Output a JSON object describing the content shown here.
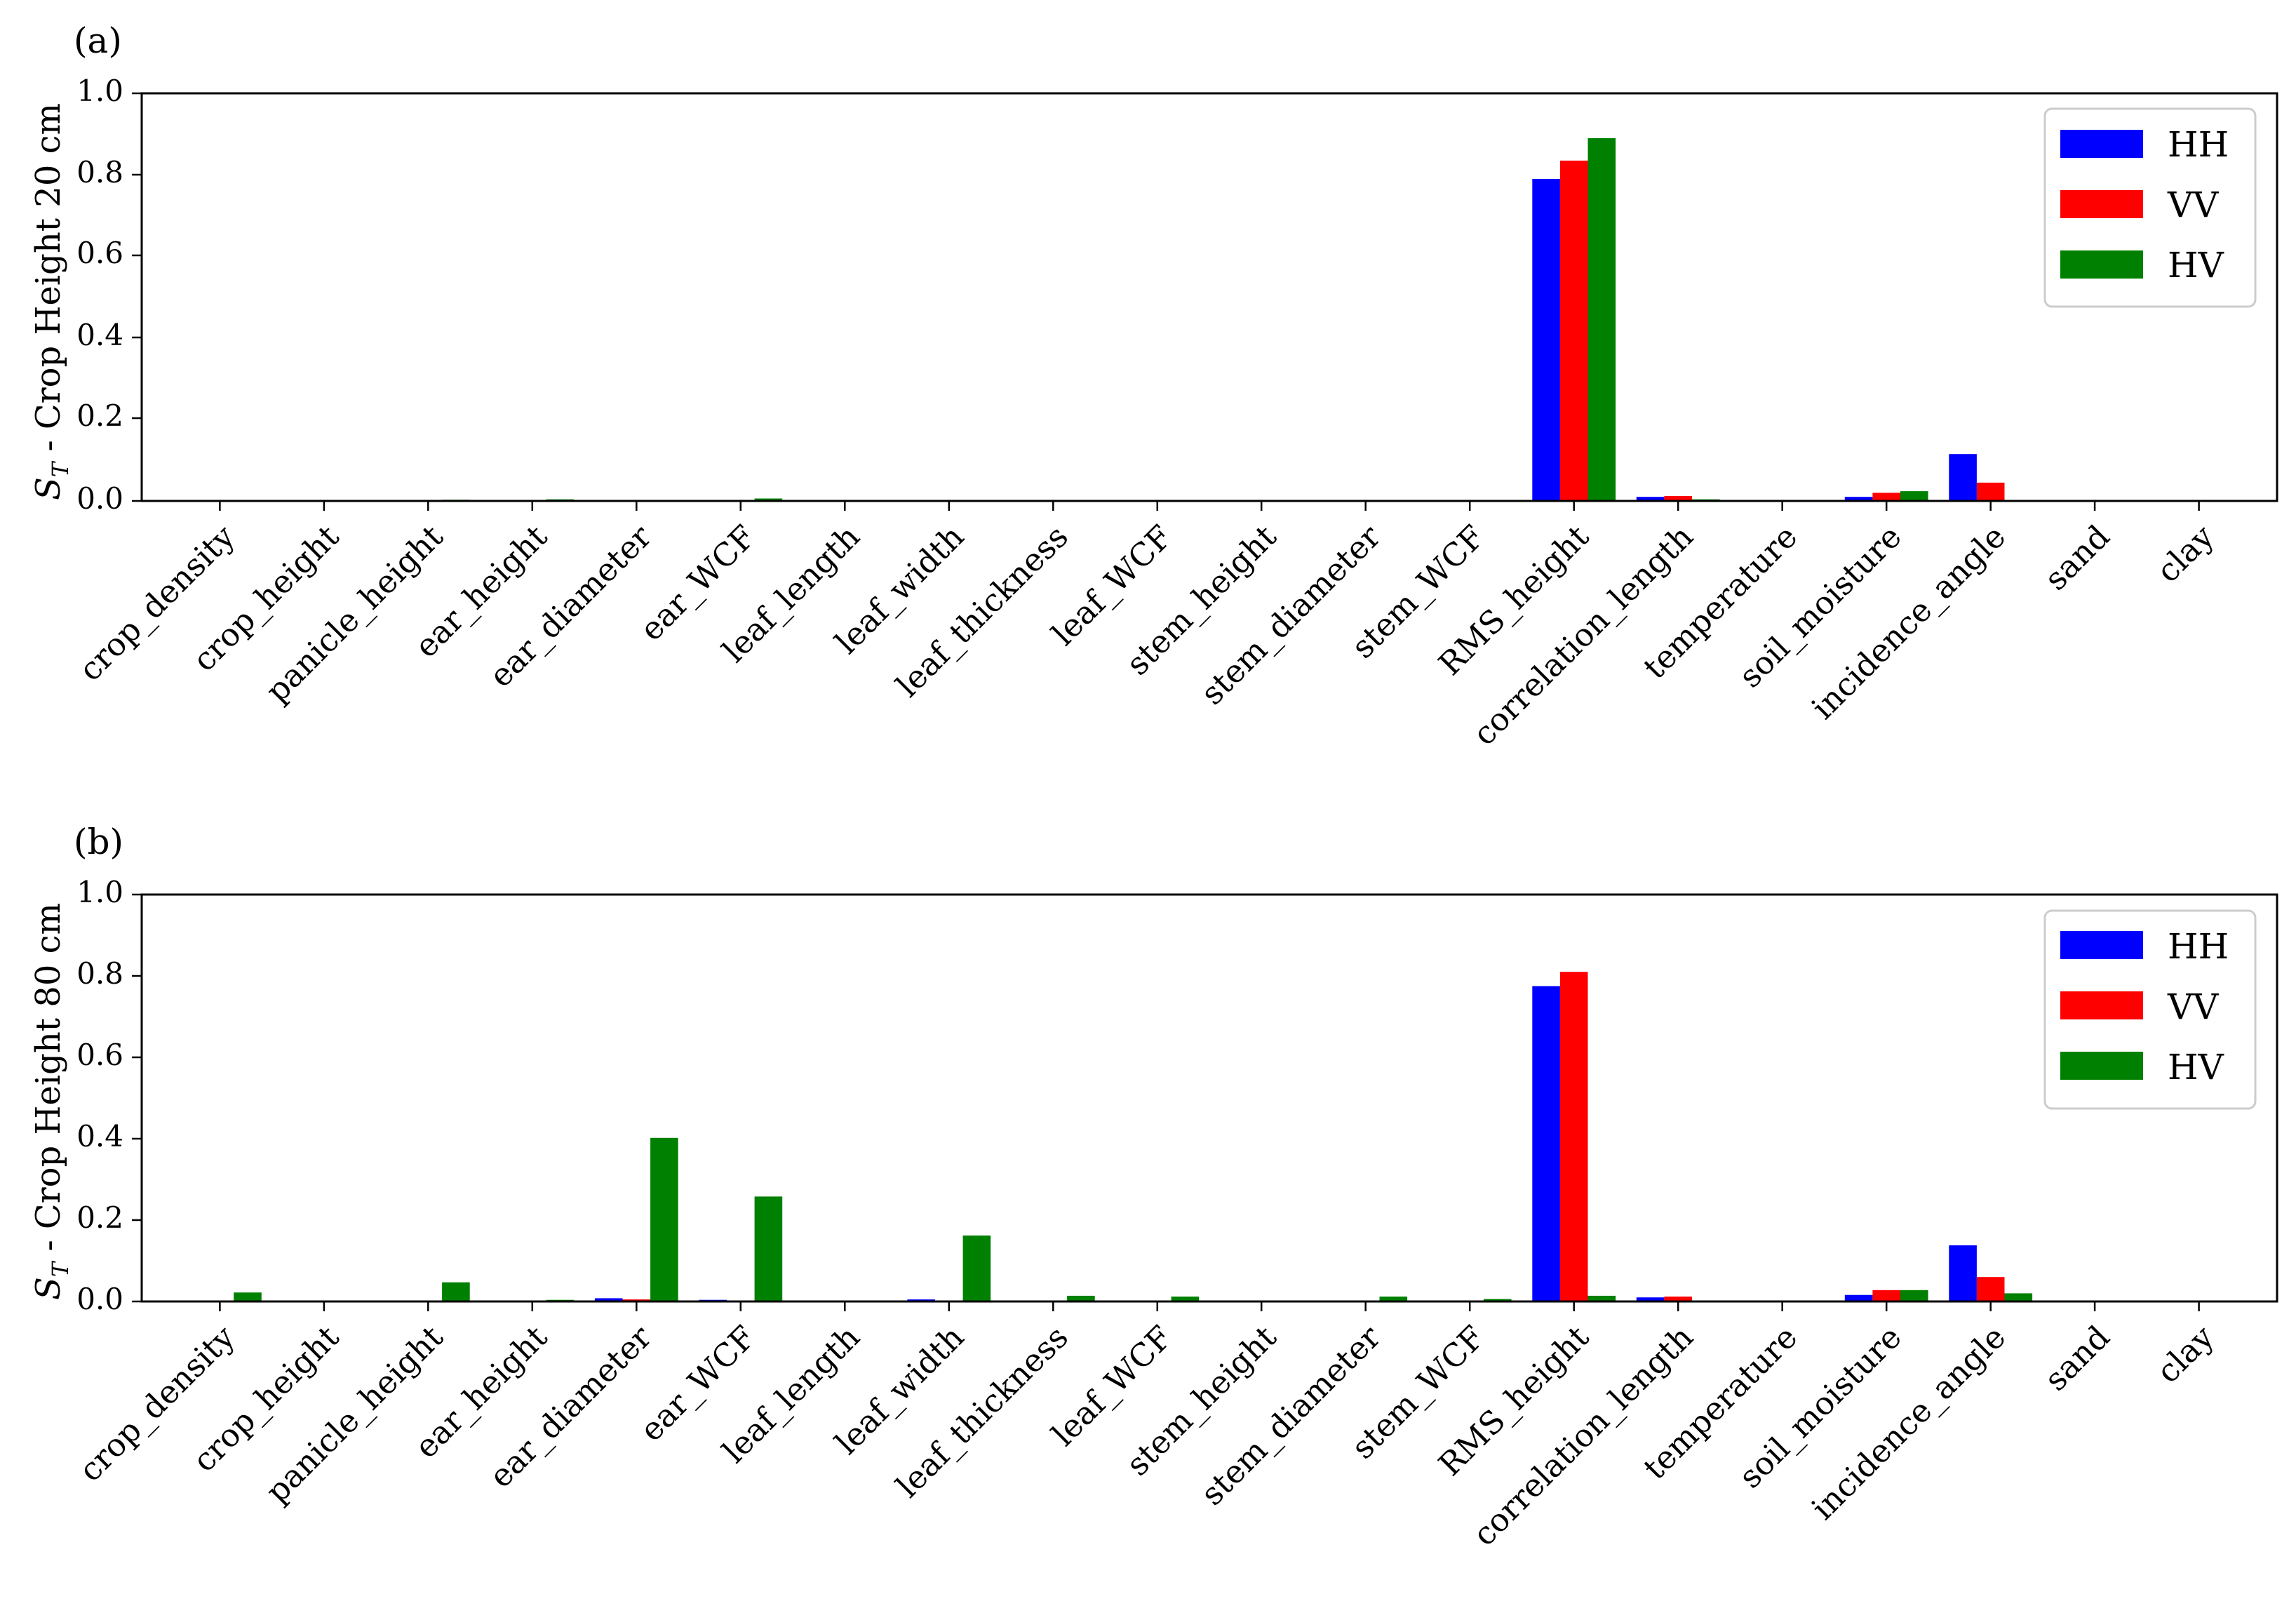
{
  "figure": {
    "colors": {
      "HH": "#0000ff",
      "VV": "#ff0000",
      "HV": "#008000"
    }
  },
  "chart_data": [
    {
      "type": "bar",
      "panel_label": "(a)",
      "ylabel": "S_T - Crop Height 20 cm",
      "ylabel_main": "S",
      "ylabel_sub": "T",
      "ylabel_rest": " - Crop Height 20 cm",
      "ylim": [
        0,
        1.0
      ],
      "yticks": [
        "0.0",
        "0.2",
        "0.4",
        "0.6",
        "0.8",
        "1.0"
      ],
      "legend_position": "upper right",
      "categories": [
        "crop_density",
        "crop_height",
        "panicle_height",
        "ear_height",
        "ear_diameter",
        "ear_WCF",
        "leaf_length",
        "leaf_width",
        "leaf_thickness",
        "leaf_WCF",
        "stem_height",
        "stem_diameter",
        "stem_WCF",
        "RMS_height",
        "correlation_length",
        "temperature",
        "soil_moisture",
        "incidence_angle",
        "sand",
        "clay"
      ],
      "series": [
        {
          "name": "HH",
          "color": "#0000ff",
          "values": [
            0,
            0,
            0,
            0,
            0,
            0,
            0,
            0,
            0,
            0,
            0,
            0,
            0,
            0.79,
            0.01,
            0,
            0.01,
            0.115,
            0,
            0
          ]
        },
        {
          "name": "VV",
          "color": "#ff0000",
          "values": [
            0,
            0,
            0,
            0,
            0,
            0,
            0,
            0,
            0,
            0,
            0,
            0,
            0,
            0.835,
            0.012,
            0,
            0.02,
            0.045,
            0,
            0
          ]
        },
        {
          "name": "HV",
          "color": "#008000",
          "values": [
            0,
            0,
            0.003,
            0.004,
            0,
            0.006,
            0,
            0,
            0,
            0,
            0,
            0,
            0.002,
            0.89,
            0.004,
            0,
            0.024,
            0.002,
            0,
            0
          ]
        }
      ]
    },
    {
      "type": "bar",
      "panel_label": "(b)",
      "ylabel": "S_T - Crop Height 80 cm",
      "ylabel_main": "S",
      "ylabel_sub": "T",
      "ylabel_rest": " - Crop Height 80 cm",
      "ylim": [
        0,
        1.0
      ],
      "yticks": [
        "0.0",
        "0.2",
        "0.4",
        "0.6",
        "0.8",
        "1.0"
      ],
      "legend_position": "upper right",
      "categories": [
        "crop_density",
        "crop_height",
        "panicle_height",
        "ear_height",
        "ear_diameter",
        "ear_WCF",
        "leaf_length",
        "leaf_width",
        "leaf_thickness",
        "leaf_WCF",
        "stem_height",
        "stem_diameter",
        "stem_WCF",
        "RMS_height",
        "correlation_length",
        "temperature",
        "soil_moisture",
        "incidence_angle",
        "sand",
        "clay"
      ],
      "series": [
        {
          "name": "HH",
          "color": "#0000ff",
          "values": [
            0,
            0,
            0,
            0,
            0.008,
            0.004,
            0,
            0.005,
            0,
            0,
            0,
            0,
            0,
            0.775,
            0.01,
            0,
            0.016,
            0.138,
            0,
            0
          ]
        },
        {
          "name": "VV",
          "color": "#ff0000",
          "values": [
            0,
            0,
            0,
            0,
            0.005,
            0,
            0,
            0,
            0,
            0,
            0,
            0,
            0,
            0.81,
            0.012,
            0,
            0.028,
            0.06,
            0,
            0
          ]
        },
        {
          "name": "HV",
          "color": "#008000",
          "values": [
            0.022,
            0,
            0.047,
            0.004,
            0.402,
            0.258,
            0,
            0.162,
            0.014,
            0.012,
            0,
            0.012,
            0.006,
            0.014,
            0,
            0,
            0.028,
            0.02,
            0,
            0
          ]
        }
      ]
    }
  ]
}
